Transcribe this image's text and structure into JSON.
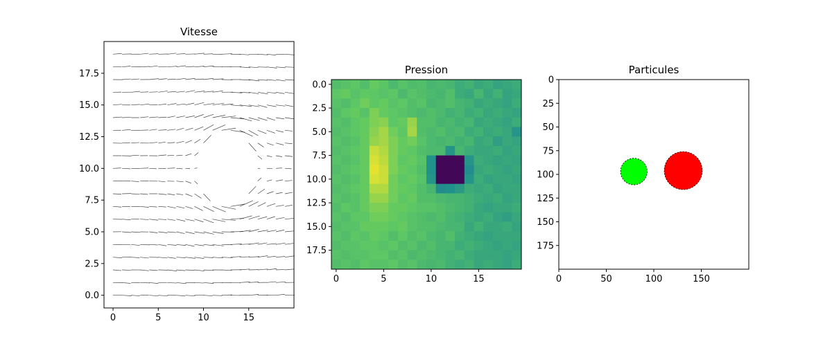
{
  "chart_data": [
    {
      "type": "quiver",
      "title": "Vitesse",
      "xlim": [
        -1,
        20
      ],
      "ylim": [
        -1,
        20
      ],
      "xticks": [
        0,
        5,
        10,
        15
      ],
      "yticks": [
        0.0,
        2.5,
        5.0,
        7.5,
        10.0,
        12.5,
        15.0,
        17.5
      ],
      "xtick_labels": [
        "0",
        "5",
        "10",
        "15"
      ],
      "ytick_labels": [
        "0.0",
        "2.5",
        "5.0",
        "7.5",
        "10.0",
        "12.5",
        "15.0",
        "17.5"
      ],
      "grid": {
        "nx": 20,
        "ny": 20
      },
      "flow": "uniform left-to-right flow deflected around an obstacle centred near (12.5, 10)",
      "obstacle_center": [
        12.5,
        10
      ],
      "obstacle_radius": 3,
      "arrow_color": "#000000"
    },
    {
      "type": "heatmap",
      "title": "Pression",
      "xticks": [
        0,
        5,
        10,
        15
      ],
      "yticks": [
        0.0,
        2.5,
        5.0,
        7.5,
        10.0,
        12.5,
        15.0,
        17.5
      ],
      "xtick_labels": [
        "0",
        "5",
        "10",
        "15"
      ],
      "ytick_labels": [
        "0.0",
        "2.5",
        "5.0",
        "7.5",
        "10.0",
        "12.5",
        "15.0",
        "17.5"
      ],
      "colormap": "viridis",
      "y_axis": "inverted",
      "values": [
        [
          0.7,
          0.72,
          0.74,
          0.7,
          0.76,
          0.73,
          0.68,
          0.72,
          0.69,
          0.7,
          0.66,
          0.68,
          0.66,
          0.62,
          0.64,
          0.6,
          0.62,
          0.58,
          0.6,
          0.62
        ],
        [
          0.74,
          0.76,
          0.72,
          0.75,
          0.74,
          0.72,
          0.74,
          0.68,
          0.72,
          0.7,
          0.68,
          0.66,
          0.7,
          0.62,
          0.6,
          0.66,
          0.6,
          0.64,
          0.58,
          0.6
        ],
        [
          0.72,
          0.7,
          0.74,
          0.78,
          0.74,
          0.76,
          0.72,
          0.74,
          0.7,
          0.72,
          0.66,
          0.68,
          0.7,
          0.66,
          0.64,
          0.6,
          0.62,
          0.6,
          0.58,
          0.62
        ],
        [
          0.7,
          0.74,
          0.76,
          0.72,
          0.8,
          0.76,
          0.74,
          0.72,
          0.7,
          0.68,
          0.7,
          0.68,
          0.64,
          0.66,
          0.62,
          0.64,
          0.6,
          0.62,
          0.6,
          0.58
        ],
        [
          0.72,
          0.7,
          0.74,
          0.76,
          0.8,
          0.82,
          0.74,
          0.76,
          0.84,
          0.7,
          0.7,
          0.66,
          0.68,
          0.64,
          0.66,
          0.6,
          0.62,
          0.6,
          0.58,
          0.62
        ],
        [
          0.7,
          0.72,
          0.74,
          0.76,
          0.82,
          0.86,
          0.78,
          0.74,
          0.86,
          0.7,
          0.68,
          0.7,
          0.66,
          0.68,
          0.62,
          0.64,
          0.6,
          0.62,
          0.6,
          0.52
        ],
        [
          0.72,
          0.7,
          0.72,
          0.76,
          0.84,
          0.86,
          0.8,
          0.76,
          0.78,
          0.72,
          0.68,
          0.66,
          0.68,
          0.64,
          0.66,
          0.6,
          0.62,
          0.56,
          0.6,
          0.58
        ],
        [
          0.7,
          0.72,
          0.74,
          0.76,
          0.92,
          0.88,
          0.8,
          0.76,
          0.74,
          0.7,
          0.68,
          0.68,
          0.52,
          0.66,
          0.62,
          0.6,
          0.6,
          0.62,
          0.58,
          0.6
        ],
        [
          0.72,
          0.7,
          0.72,
          0.76,
          0.94,
          0.9,
          0.8,
          0.74,
          0.76,
          0.72,
          0.5,
          0.02,
          0.02,
          0.02,
          0.52,
          0.62,
          0.6,
          0.58,
          0.6,
          0.58
        ],
        [
          0.7,
          0.72,
          0.74,
          0.76,
          0.96,
          0.92,
          0.8,
          0.76,
          0.74,
          0.7,
          0.5,
          0.02,
          0.02,
          0.02,
          0.48,
          0.6,
          0.62,
          0.6,
          0.58,
          0.6
        ],
        [
          0.72,
          0.7,
          0.72,
          0.76,
          0.94,
          0.92,
          0.78,
          0.74,
          0.76,
          0.72,
          0.52,
          0.02,
          0.02,
          0.02,
          0.52,
          0.62,
          0.58,
          0.6,
          0.6,
          0.58
        ],
        [
          0.7,
          0.72,
          0.74,
          0.76,
          0.88,
          0.88,
          0.78,
          0.76,
          0.74,
          0.7,
          0.66,
          0.48,
          0.5,
          0.54,
          0.62,
          0.6,
          0.62,
          0.58,
          0.6,
          0.6
        ],
        [
          0.72,
          0.7,
          0.72,
          0.76,
          0.84,
          0.84,
          0.78,
          0.74,
          0.76,
          0.7,
          0.7,
          0.68,
          0.66,
          0.66,
          0.64,
          0.62,
          0.6,
          0.62,
          0.58,
          0.6
        ],
        [
          0.7,
          0.74,
          0.72,
          0.76,
          0.8,
          0.8,
          0.76,
          0.76,
          0.74,
          0.72,
          0.72,
          0.7,
          0.68,
          0.66,
          0.64,
          0.6,
          0.58,
          0.6,
          0.6,
          0.62
        ],
        [
          0.72,
          0.7,
          0.74,
          0.74,
          0.78,
          0.78,
          0.76,
          0.74,
          0.72,
          0.7,
          0.68,
          0.7,
          0.66,
          0.64,
          0.62,
          0.6,
          0.62,
          0.58,
          0.56,
          0.6
        ],
        [
          0.7,
          0.72,
          0.72,
          0.76,
          0.76,
          0.76,
          0.74,
          0.76,
          0.72,
          0.7,
          0.7,
          0.68,
          0.66,
          0.66,
          0.6,
          0.64,
          0.6,
          0.6,
          0.62,
          0.58
        ],
        [
          0.72,
          0.7,
          0.74,
          0.72,
          0.76,
          0.74,
          0.7,
          0.74,
          0.7,
          0.72,
          0.68,
          0.66,
          0.7,
          0.64,
          0.62,
          0.6,
          0.58,
          0.6,
          0.6,
          0.6
        ],
        [
          0.7,
          0.72,
          0.72,
          0.74,
          0.74,
          0.72,
          0.74,
          0.7,
          0.72,
          0.68,
          0.7,
          0.66,
          0.66,
          0.62,
          0.64,
          0.62,
          0.6,
          0.58,
          0.6,
          0.58
        ],
        [
          0.72,
          0.7,
          0.72,
          0.72,
          0.74,
          0.74,
          0.7,
          0.72,
          0.68,
          0.7,
          0.68,
          0.66,
          0.64,
          0.66,
          0.62,
          0.6,
          0.6,
          0.6,
          0.58,
          0.6
        ],
        [
          0.7,
          0.72,
          0.7,
          0.74,
          0.72,
          0.72,
          0.74,
          0.7,
          0.72,
          0.68,
          0.66,
          0.68,
          0.64,
          0.62,
          0.64,
          0.6,
          0.62,
          0.6,
          0.58,
          0.62
        ]
      ]
    },
    {
      "type": "scatter",
      "title": "Particules",
      "xlim": [
        0,
        200
      ],
      "ylim": [
        200,
        0
      ],
      "xticks": [
        0,
        50,
        100,
        150
      ],
      "yticks": [
        0,
        25,
        50,
        75,
        100,
        125,
        150,
        175
      ],
      "xtick_labels": [
        "0",
        "50",
        "100",
        "150"
      ],
      "ytick_labels": [
        "0",
        "25",
        "50",
        "75",
        "100",
        "125",
        "150",
        "175"
      ],
      "particles": [
        {
          "x": 79,
          "y": 97,
          "radius": 14,
          "color": "#00ff00"
        },
        {
          "x": 131,
          "y": 96,
          "radius": 20,
          "color": "#ff0000"
        }
      ]
    }
  ]
}
